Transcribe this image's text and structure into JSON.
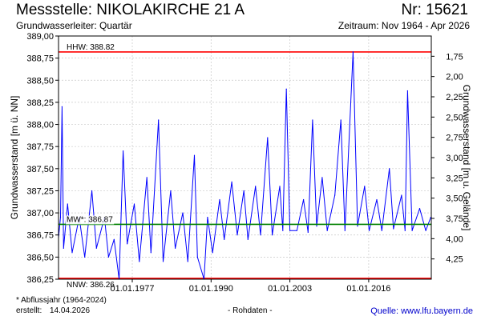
{
  "header": {
    "title": "Messstelle: NIKOLAKIRCHE 21 A",
    "station_number": "Nr: 15621",
    "aquifer": "Grundwasserleiter: Quartär",
    "period": "Zeitraum: Nov 1964 - Apr 2026"
  },
  "footer": {
    "footnote": "* Abflussjahr (1964-2024)",
    "created_label": "erstellt:",
    "created_date": "14.04.2026",
    "data_type": "- Rohdaten -",
    "source": "Quelle: www.lfu.bayern.de"
  },
  "chart_data": {
    "type": "line",
    "title": "Messstelle: NIKOLAKIRCHE 21 A",
    "ylabel": "Grundwasserstand [m ü. NN]",
    "y2label": "Grundwasserstand [m u. Gelände]",
    "ylim": [
      386.25,
      389.0
    ],
    "y2lim": [
      4.5,
      1.5
    ],
    "xlim": [
      "1964-11-01",
      "2026-04-30"
    ],
    "grid": true,
    "y_ticks": [
      "386,25",
      "386,50",
      "386,75",
      "387,00",
      "387,25",
      "387,50",
      "387,75",
      "388,00",
      "388,25",
      "388,50",
      "388,75",
      "389,00"
    ],
    "y2_ticks": [
      "1,75",
      "2,00",
      "2,25",
      "2,50",
      "2,75",
      "3,00",
      "3,25",
      "3,50",
      "3,75",
      "4,00",
      "4,25"
    ],
    "x_ticks": [
      "01.01.1977",
      "01.01.1990",
      "01.01.2003",
      "01.01.2016"
    ],
    "reference_lines": [
      {
        "key": "HHW",
        "label": "HHW: 388.82",
        "value": 388.82,
        "color": "#ff0000"
      },
      {
        "key": "MW",
        "label": "MW*: 386.87",
        "value": 386.87,
        "color": "#008000"
      },
      {
        "key": "NNW",
        "label": "NNW: 386.26",
        "value": 386.26,
        "color": "#ff0000"
      }
    ],
    "series": [
      {
        "color": "#0000ff",
        "points": [
          [
            "1964-11-01",
            386.72
          ],
          [
            "1965-03-01",
            386.95
          ],
          [
            "1965-06-01",
            388.2
          ],
          [
            "1965-09-01",
            386.6
          ],
          [
            "1966-05-01",
            387.1
          ],
          [
            "1967-02-01",
            386.55
          ],
          [
            "1968-04-01",
            386.95
          ],
          [
            "1969-03-01",
            386.5
          ],
          [
            "1970-05-01",
            387.25
          ],
          [
            "1971-02-01",
            386.6
          ],
          [
            "1972-06-01",
            386.95
          ],
          [
            "1973-02-01",
            386.5
          ],
          [
            "1974-01-01",
            386.7
          ],
          [
            "1974-11-01",
            386.25
          ],
          [
            "1975-07-01",
            387.7
          ],
          [
            "1976-03-01",
            386.65
          ],
          [
            "1977-05-01",
            387.1
          ],
          [
            "1978-03-01",
            386.45
          ],
          [
            "1979-06-01",
            387.4
          ],
          [
            "1980-02-01",
            386.55
          ],
          [
            "1981-05-01",
            388.05
          ],
          [
            "1982-02-01",
            386.45
          ],
          [
            "1983-05-01",
            387.25
          ],
          [
            "1984-02-01",
            386.6
          ],
          [
            "1985-05-01",
            387.0
          ],
          [
            "1986-03-01",
            386.45
          ],
          [
            "1987-04-01",
            387.65
          ],
          [
            "1987-10-01",
            386.5
          ],
          [
            "1988-11-01",
            386.25
          ],
          [
            "1989-06-01",
            386.95
          ],
          [
            "1990-04-01",
            386.55
          ],
          [
            "1991-06-01",
            387.15
          ],
          [
            "1992-03-01",
            386.7
          ],
          [
            "1993-06-01",
            387.35
          ],
          [
            "1994-05-01",
            386.75
          ],
          [
            "1995-06-01",
            387.25
          ],
          [
            "1996-02-01",
            386.7
          ],
          [
            "1997-05-01",
            387.3
          ],
          [
            "1998-03-01",
            386.75
          ],
          [
            "1999-05-01",
            387.85
          ],
          [
            "2000-02-01",
            386.75
          ],
          [
            "2001-05-01",
            387.3
          ],
          [
            "2001-11-01",
            386.8
          ],
          [
            "2002-06-01",
            388.4
          ],
          [
            "2003-01-01",
            386.8
          ],
          [
            "2004-03-01",
            386.8
          ],
          [
            "2005-04-01",
            387.15
          ],
          [
            "2006-01-01",
            386.78
          ],
          [
            "2006-10-01",
            388.05
          ],
          [
            "2007-06-01",
            386.85
          ],
          [
            "2008-05-01",
            387.4
          ],
          [
            "2009-03-01",
            386.8
          ],
          [
            "2010-06-01",
            387.2
          ],
          [
            "2011-06-01",
            388.05
          ],
          [
            "2012-02-01",
            386.8
          ],
          [
            "2013-06-01",
            388.82
          ],
          [
            "2014-03-01",
            386.85
          ],
          [
            "2015-05-01",
            387.3
          ],
          [
            "2016-02-01",
            386.8
          ],
          [
            "2017-05-01",
            387.15
          ],
          [
            "2018-03-01",
            386.8
          ],
          [
            "2019-06-01",
            387.5
          ],
          [
            "2020-02-01",
            386.82
          ],
          [
            "2021-06-01",
            387.2
          ],
          [
            "2022-01-01",
            386.8
          ],
          [
            "2022-06-01",
            388.38
          ],
          [
            "2023-03-01",
            386.8
          ],
          [
            "2024-06-01",
            387.05
          ],
          [
            "2025-06-01",
            386.8
          ],
          [
            "2026-04-01",
            386.95
          ]
        ]
      }
    ]
  }
}
